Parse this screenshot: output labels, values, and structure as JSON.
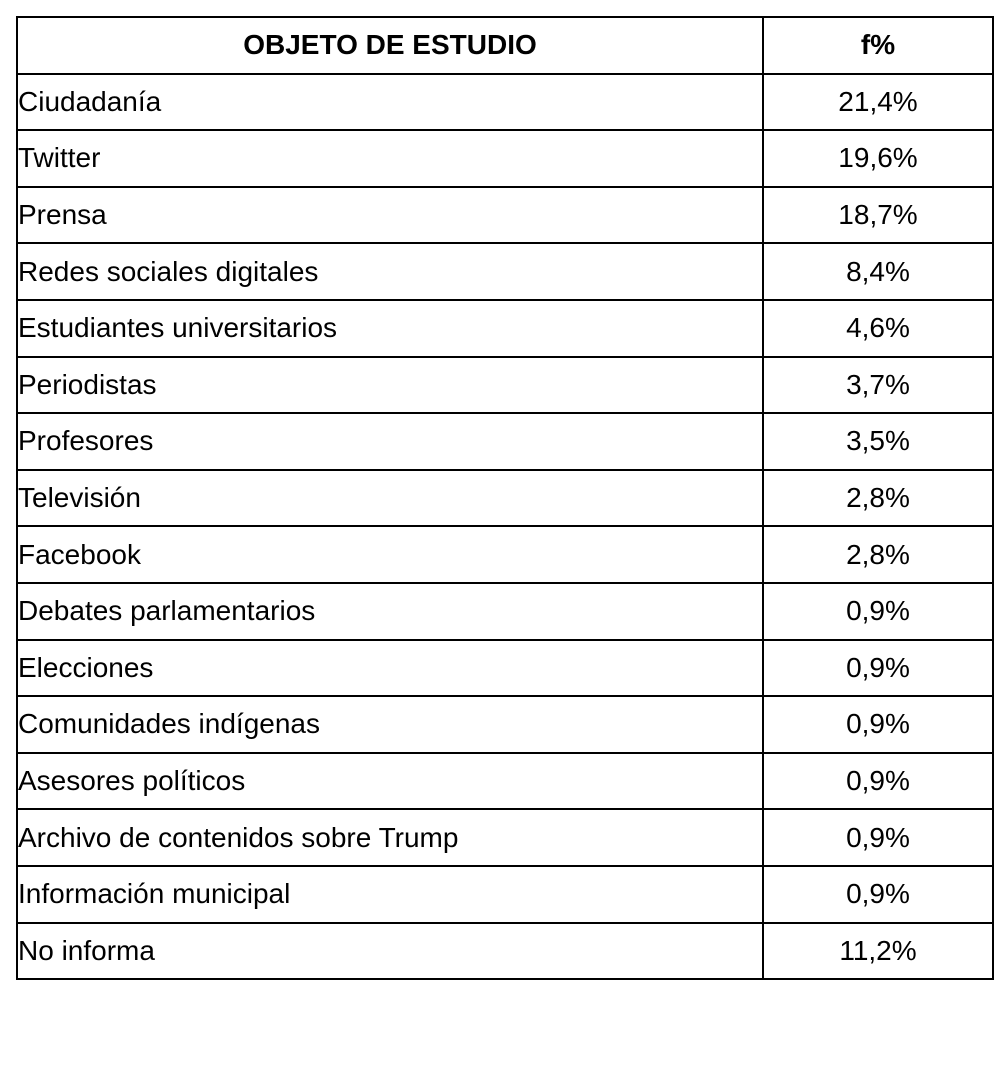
{
  "table": {
    "headers": [
      "OBJETO DE ESTUDIO",
      "f%"
    ],
    "rows": [
      [
        "Ciudadanía",
        "21,4%"
      ],
      [
        "Twitter",
        "19,6%"
      ],
      [
        "Prensa",
        "18,7%"
      ],
      [
        "Redes sociales digitales",
        "8,4%"
      ],
      [
        "Estudiantes universitarios",
        "4,6%"
      ],
      [
        "Periodistas",
        "3,7%"
      ],
      [
        "Profesores",
        "3,5%"
      ],
      [
        "Televisión",
        "2,8%"
      ],
      [
        "Facebook",
        "2,8%"
      ],
      [
        "Debates parlamentarios",
        "0,9%"
      ],
      [
        "Elecciones",
        "0,9%"
      ],
      [
        "Comunidades indígenas",
        "0,9%"
      ],
      [
        "Asesores políticos",
        "0,9%"
      ],
      [
        "Archivo de contenidos sobre Trump",
        "0,9%"
      ],
      [
        "Información municipal",
        "0,9%"
      ],
      [
        "No informa",
        "11,2%"
      ]
    ]
  }
}
